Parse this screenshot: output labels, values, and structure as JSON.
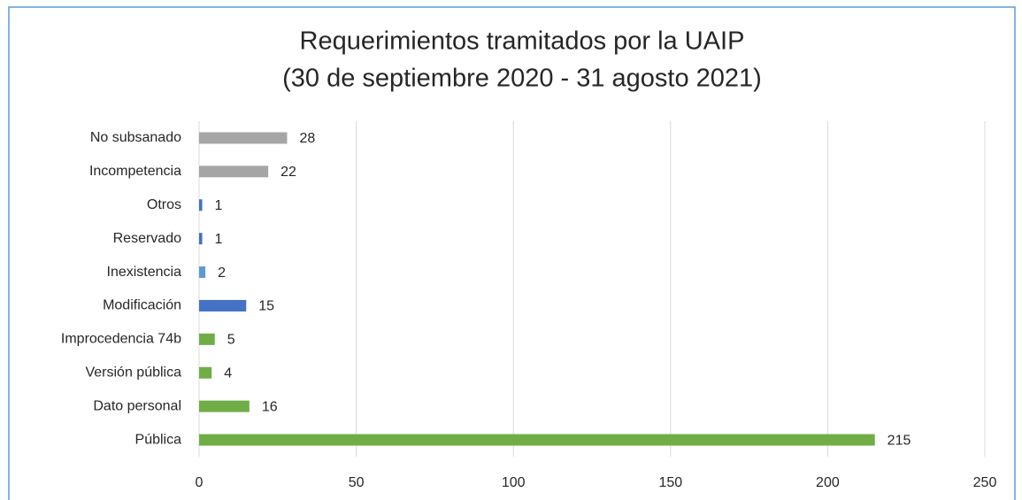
{
  "chart_data": {
    "type": "bar",
    "orientation": "horizontal",
    "title": [
      "Requerimientos tramitados por la UAIP",
      "(30 de septiembre 2020 - 31 agosto 2021)"
    ],
    "categories": [
      "No subsanado",
      "Incompetencia",
      "Otros",
      "Reservado",
      "Inexistencia",
      "Modificación",
      "Improcedencia 74b",
      "Versión pública",
      "Dato personal",
      "Pública"
    ],
    "values": [
      28,
      22,
      1,
      1,
      2,
      15,
      5,
      4,
      16,
      215
    ],
    "colors": [
      "#a5a5a5",
      "#a5a5a5",
      "#4472c4",
      "#4472c4",
      "#5b9bd5",
      "#4472c4",
      "#70ad47",
      "#70ad47",
      "#70ad47",
      "#70ad47"
    ],
    "xlim": [
      0,
      250
    ],
    "xticks": [
      0,
      50,
      100,
      150,
      200,
      250
    ],
    "grid": true
  }
}
